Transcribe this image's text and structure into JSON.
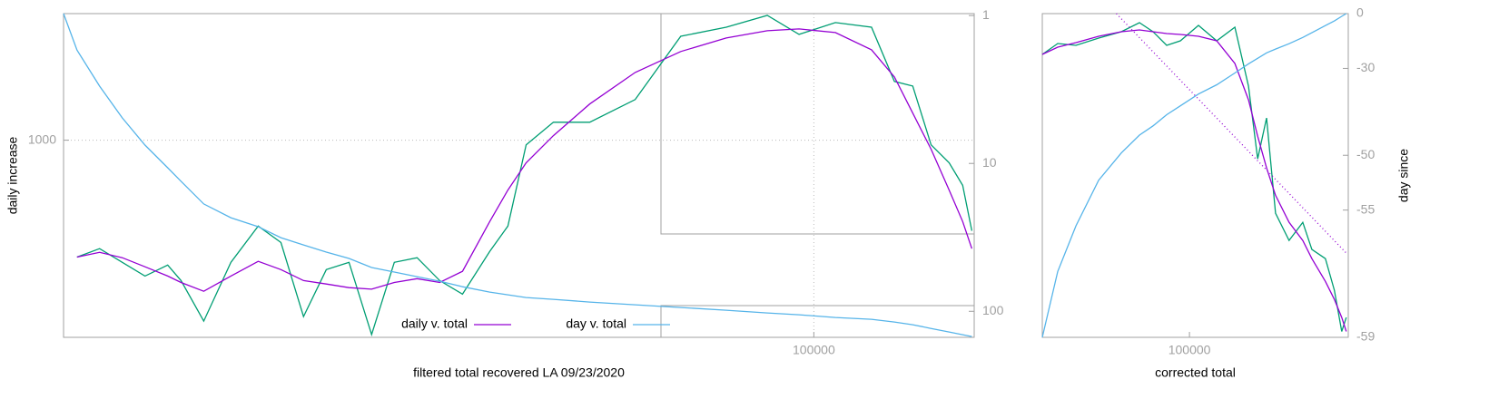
{
  "chart_data": [
    {
      "type": "line",
      "xlabel": "filtered total recovered LA 09/23/2020",
      "ylabel": "daily increase",
      "xlog": true,
      "ylog": true,
      "y2log": true,
      "grid": true,
      "legend": "bottom",
      "x": [
        15000,
        15520,
        16430,
        17400,
        18430,
        19520,
        20190,
        21380,
        22900,
        24540,
        25990,
        27520,
        29150,
        30870,
        32690,
        34620,
        36670,
        38830,
        41130,
        44060,
        46130,
        48310,
        51760,
        56740,
        63650,
        71430,
        80140,
        88900,
        96330,
        105600,
        115700,
        122600,
        128400,
        134500,
        140800,
        145700,
        149100
      ],
      "xlim": [
        15000,
        150000
      ],
      "xticks": [
        100000
      ],
      "ylim": [
        240,
        2500
      ],
      "yticks": [
        1000
      ],
      "y2lim": [
        150,
        0.97
      ],
      "y2ticks": [
        1,
        10,
        100
      ],
      "series": [
        {
          "color": "#009e73",
          "values": [
            null,
            429,
            456,
            413,
            374,
            405,
            362,
            270,
            413,
            537,
            477,
            279,
            392,
            413,
            245,
            413,
            427,
            362,
            328,
            447,
            537,
            967,
            1139,
            1139,
            1342,
            2122,
            2266,
            2467,
            2151,
            2342,
            2266,
            1530,
            1480,
            967,
            849,
            721,
            519
          ]
        },
        {
          "name": "daily v. total",
          "color": "#9400d3",
          "values": [
            null,
            429,
            444,
            427,
            400,
            374,
            357,
            335,
            374,
            416,
            392,
            362,
            353,
            344,
            340,
            357,
            367,
            357,
            387,
            555,
            697,
            849,
            1033,
            1299,
            1633,
            1900,
            2095,
            2208,
            2237,
            2179,
            1924,
            1581,
            1217,
            937,
            697,
            555,
            456
          ]
        },
        {
          "name": "day v. total",
          "color": "#56b4e9",
          "axis": "y2",
          "values": [
            0.97,
            1.71,
            3.0,
            4.92,
            7.52,
            10.7,
            13.2,
            18.8,
            23.3,
            26.8,
            31.8,
            35.6,
            39.8,
            43.9,
            50.6,
            54.3,
            58.3,
            62.6,
            68.2,
            74.1,
            77.4,
            80.7,
            83.0,
            86.6,
            90.4,
            94.3,
            98.4,
            102.6,
            105.6,
            110.1,
            113.3,
            118.1,
            123.3,
            130.6,
            138.0,
            144.0,
            148.2
          ]
        }
      ]
    },
    {
      "type": "line",
      "xlabel": "corrected total",
      "y2label": "day since",
      "xlog": true,
      "ylog": true,
      "y2log": true,
      "y2offset": 60,
      "grid": false,
      "x": [
        58000,
        61400,
        65700,
        71450,
        77700,
        83100,
        87400,
        91900,
        96700,
        103400,
        110600,
        118300,
        124400,
        128700,
        133000,
        137500,
        144600,
        152100,
        157300,
        165400,
        171000,
        175700,
        178700
      ],
      "xlim": [
        58000,
        180000
      ],
      "xticks": [
        100000
      ],
      "ylim": [
        10,
        3000
      ],
      "y2lim": [
        -59,
        0
      ],
      "y2ticks": [
        0,
        -30,
        -50,
        -55,
        -59
      ],
      "series": [
        {
          "color": "#009e73",
          "values": [
            1461,
            1770,
            1714,
            1948,
            2179,
            2557,
            2179,
            1714,
            1857,
            2437,
            1857,
            2360,
            835,
            232,
            477,
            89.0,
            55.1,
            75.8,
            47.0,
            40.0,
            22.9,
            11.1,
            14.2
          ]
        },
        {
          "color": "#9400d3",
          "values": [
            1461,
            1660,
            1799,
            2012,
            2179,
            2250,
            2179,
            2111,
            2077,
            2012,
            1857,
            1245,
            657,
            346,
            198,
            122,
            75.8,
            55.1,
            40.0,
            26.8,
            19.5,
            14.2,
            11.1
          ]
        },
        {
          "color": "#56b4e9",
          "axis": "y2",
          "values": [
            -59.0,
            -57.7,
            -55.9,
            -52.7,
            -49.7,
            -47.1,
            -45.5,
            -43.3,
            -41.3,
            -38.3,
            -35.6,
            -31.7,
            -28.2,
            -25.9,
            -23.5,
            -21.7,
            -19.0,
            -15.6,
            -12.9,
            -8.4,
            -5.3,
            -2.0,
            0
          ]
        },
        {
          "color": "#9400d3",
          "dash": true,
          "x": [
            76300,
            179300
          ],
          "values": [
            3000,
            43.4
          ]
        }
      ]
    }
  ]
}
